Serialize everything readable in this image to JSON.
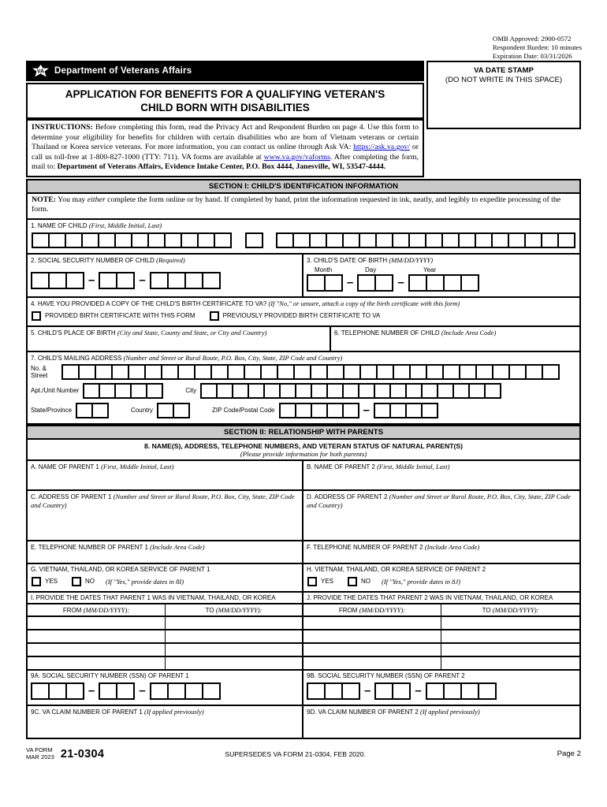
{
  "meta": {
    "omb_approved": "OMB Approved: 2900-0572",
    "respondent_burden": "Respondent Burden: 10 minutes",
    "expiration_date": "Expiration Date: 03/31/2026"
  },
  "header": {
    "agency": "Department of Veterans Affairs",
    "title": "APPLICATION FOR BENEFITS FOR A QUALIFYING VETERAN'S CHILD BORN WITH DISABILITIES"
  },
  "date_stamp": {
    "title": "VA DATE STAMP",
    "subtitle": "(DO NOT WRITE IN THIS SPACE)"
  },
  "instructions": {
    "lead": "INSTRUCTIONS:",
    "p1": " Before completing this form, read the Privacy Act and Respondent Burden on page 4. Use this form to determine your eligibility for benefits for children with certain disabilities who are born of Vietnam veterans or certain Thailand or Korea service veterans. For more information, you can contact us online through Ask VA: ",
    "link1": "https://ask.va.gov/",
    "p2": " or call us toll-free at 1-800-827-1000 (TTY: 711). VA forms are available at ",
    "link2": "www.va.gov/vaforms",
    "p3": ". After completing the form, mail to: ",
    "mail_address": "Department of Veterans Affairs, Evidence Intake Center, P.O. Box 4444, Janesville, WI, 53547-4444."
  },
  "section1": {
    "title": "SECTION I: CHILD'S IDENTIFICATION INFORMATION",
    "note_lead": "NOTE:",
    "note_pre": " You may ",
    "note_italic": "either",
    "note_post": " complete the form online or by hand. If completed by hand, print the information requested in ink, neatly, and legibly to expedite processing of the form."
  },
  "fields": {
    "f1": {
      "label": "1. NAME OF CHILD",
      "hint": "(First, Middle Initial, Last)"
    },
    "f2": {
      "label": "2. SOCIAL SECURITY NUMBER OF CHILD",
      "hint": "(Required)"
    },
    "f3": {
      "label": "3. CHILD'S DATE OF BIRTH",
      "hint": "(MM/DD/YYYY)",
      "month": "Month",
      "day": "Day",
      "year": "Year"
    },
    "f4": {
      "label": "4. HAVE YOU PROVIDED A COPY OF THE CHILD'S BIRTH CERTIFICATE TO VA?",
      "hint": "(If \"No,\" or unsure, attach a copy of the birth certificate with this form)",
      "opt1": "PROVIDED BIRTH CERTIFICATE WITH THIS FORM",
      "opt2": "PREVIOUSLY PROVIDED BIRTH CERTIFICATE TO VA"
    },
    "f5": {
      "label": "5. CHILD'S PLACE OF BIRTH",
      "hint": "(City and State, County and State, or City and Country)"
    },
    "f6": {
      "label": "6. TELEPHONE NUMBER OF CHILD",
      "hint": "(Include Area Code)"
    },
    "f7": {
      "label": "7. CHILD'S MAILING ADDRESS",
      "hint": "(Number and Street or Rural Route, P.O. Box, City, State, ZIP Code and Country)",
      "street_label": "No. & Street",
      "apt_label": "Apt./Unit Number",
      "city_label": "City",
      "state_label": "State/Province",
      "country_label": "Country",
      "zip_label": "ZIP Code/Postal Code"
    }
  },
  "combs": {
    "first_name": 12,
    "middle_initial": 1,
    "last_name": 18,
    "ssn_a": 3,
    "ssn_b": 2,
    "ssn_c": 4,
    "month": 2,
    "day": 2,
    "year": 4,
    "street": 30,
    "apt": 5,
    "city": 19,
    "state": 2,
    "country": 2,
    "zip_a": 5,
    "zip_b": 4
  },
  "section2": {
    "title": "SECTION II: RELATIONSHIP WITH PARENTS"
  },
  "parents": {
    "header": "8. NAME(S), ADDRESS, TELEPHONE NUMBERS, AND VETERAN STATUS OF NATURAL PARENT(S)",
    "subheader": "(Please provide information for both parents)",
    "a_label": "A. NAME OF PARENT 1",
    "b_label": "B. NAME OF PARENT 2",
    "name_hint": "(First, Middle Initial, Last)",
    "c_label": "C. ADDRESS OF PARENT 1",
    "d_label": "D. ADDRESS OF PARENT 2",
    "address_hint": "(Number and Street or Rural Route, P.O. Box, City, State, ZIP Code and Country)",
    "e_label": "E. TELEPHONE NUMBER OF PARENT 1",
    "f_label": "F. TELEPHONE NUMBER OF PARENT 2",
    "phone_hint": "(Include Area Code)",
    "g_label": "G. VIETNAM, THAILAND, OR KOREA SERVICE OF PARENT 1",
    "h_label": "H. VIETNAM, THAILAND, OR KOREA SERVICE OF PARENT 2",
    "yes": "YES",
    "no": "NO",
    "g_hint": "(If \"Yes,\" provide dates in 8I)",
    "h_hint": "(If \"Yes,\" provide dates in 8J)",
    "i_label": "I. PROVIDE THE DATES THAT PARENT 1 WAS IN VIETNAM, THAILAND, OR KOREA",
    "j_label": "J. PROVIDE THE DATES THAT PARENT 2 WAS IN VIETNAM, THAILAND, OR KOREA",
    "table": {
      "from_label": "FROM",
      "to_label": "TO",
      "date_hint": "(MM/DD/YYYY):",
      "rows": 4
    },
    "ssn1_label": "9A. SOCIAL SECURITY NUMBER (SSN) OF PARENT 1",
    "ssn2_label": "9B. SOCIAL SECURITY NUMBER (SSN) OF PARENT 2",
    "claim1_label": "9C. VA CLAIM NUMBER OF PARENT 1",
    "claim2_label": "9D. VA CLAIM NUMBER OF PARENT 2",
    "claim_hint": "(If applied previously)"
  },
  "footer": {
    "form_label": "VA FORM",
    "form_date": "MAR 2023",
    "form_number": "21-0304",
    "supersedes": "SUPERSEDES VA FORM 21-0304, FEB 2020.",
    "page": "Page 2"
  }
}
